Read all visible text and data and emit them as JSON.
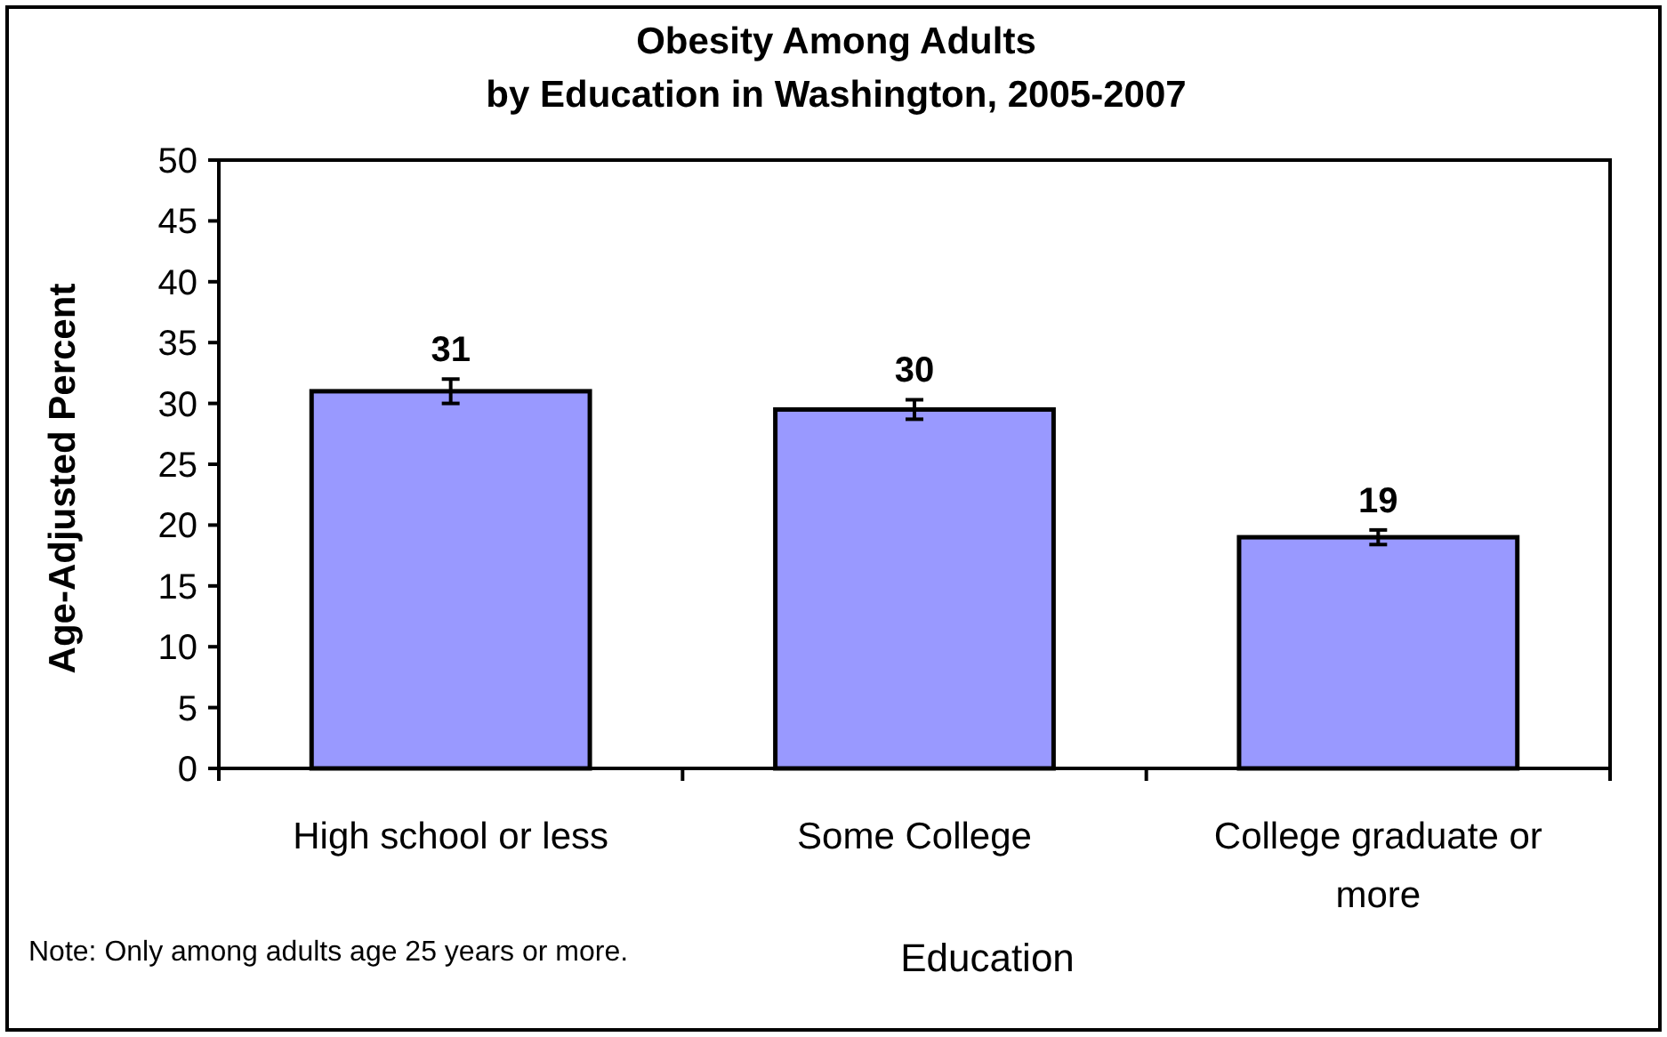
{
  "chart_data": {
    "type": "bar",
    "title": "Obesity Among Adults\nby Education in Washington, 2005-2007",
    "xlabel": "Education",
    "ylabel": "Age-Adjusted Percent",
    "categories": [
      "High school or less",
      "Some College",
      "College graduate or more"
    ],
    "values": [
      31,
      29.5,
      19
    ],
    "value_labels": [
      "31",
      "30",
      "19"
    ],
    "errors": [
      1,
      0.8,
      0.6
    ],
    "color": "#9999ff",
    "ylim": [
      0,
      50
    ],
    "yticks": [
      0,
      5,
      10,
      15,
      20,
      25,
      30,
      35,
      40,
      45,
      50
    ],
    "grid": false,
    "annotations": [
      "Note: Only among adults age 25 years or more."
    ]
  }
}
